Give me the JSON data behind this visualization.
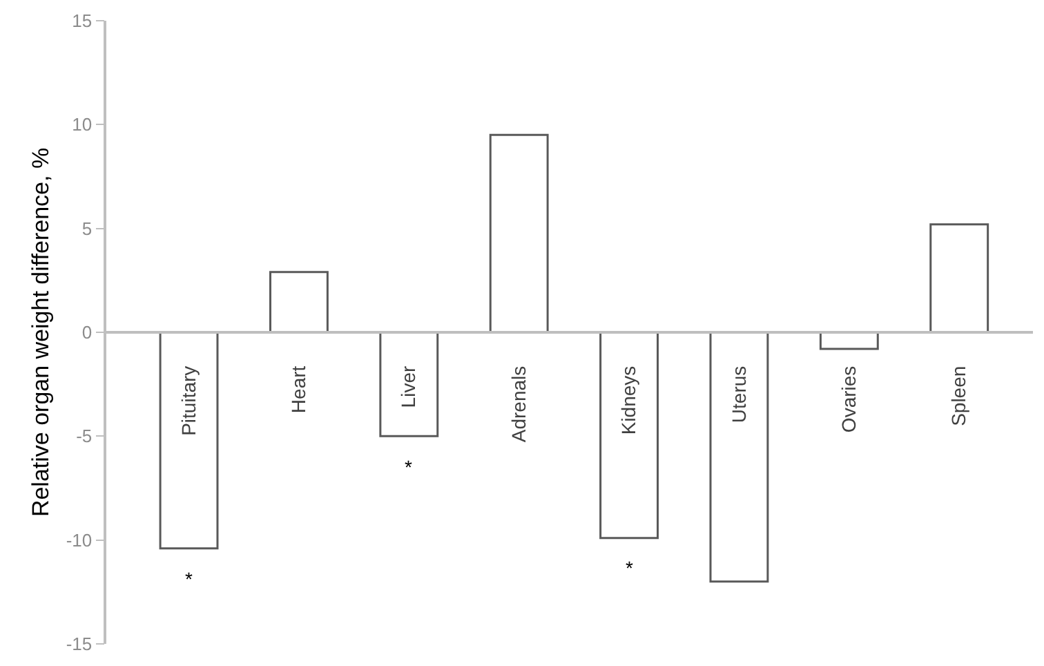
{
  "chart_data": {
    "type": "bar",
    "ylabel": "Relative organ weight difference, %",
    "categories": [
      "Pituitary",
      "Heart",
      "Liver",
      "Adrenals",
      "Kidneys",
      "Uterus",
      "Ovaries",
      "Spleen"
    ],
    "values": [
      -10.4,
      2.9,
      -5.0,
      9.5,
      -9.9,
      -12.0,
      -0.8,
      5.2
    ],
    "color": "#ffffff",
    "ylim": [
      -15,
      15
    ],
    "yticks": [
      -15,
      -10,
      -5,
      0,
      5,
      10,
      15
    ],
    "grid": false,
    "annotations": [
      {
        "text": "*",
        "x": "Pituitary",
        "y": -10.4
      },
      {
        "text": "*",
        "x": "Liver",
        "y": -5.0
      },
      {
        "text": "*",
        "x": "Kidneys",
        "y": -9.9
      }
    ]
  }
}
